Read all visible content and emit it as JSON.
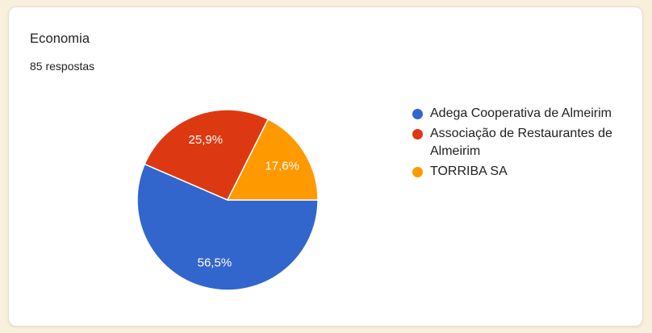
{
  "page": {
    "background_color": "#f8efdd",
    "card_background": "#ffffff",
    "card_border_color": "#e3ddd0"
  },
  "header": {
    "title": "Economia",
    "responses_label": "85 respostas"
  },
  "chart_data": {
    "type": "pie",
    "title": "Economia",
    "subtitle": "85 respostas",
    "legend_position": "right",
    "start_angle_deg": 0,
    "direction": "clockwise",
    "decimal_separator": ",",
    "label_color": "#ffffff",
    "slice_border_color": "#ffffff",
    "slices": [
      {
        "label": "Adega Cooperativa de Almeirim",
        "value": 56.5,
        "display": "56,5%",
        "color": "#3366CC"
      },
      {
        "label": "Associação de Restaurantes de Almeirim",
        "value": 25.9,
        "display": "25,9%",
        "color": "#DC3912"
      },
      {
        "label": "TORRIBA SA",
        "value": 17.6,
        "display": "17,6%",
        "color": "#FF9900"
      }
    ]
  }
}
